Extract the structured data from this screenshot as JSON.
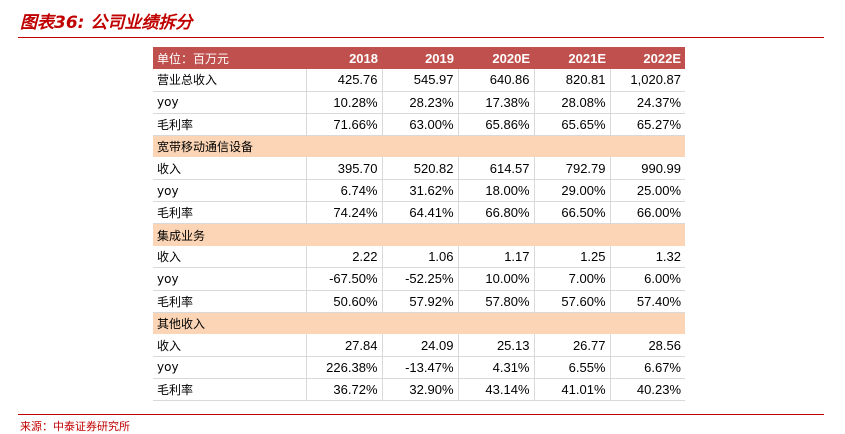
{
  "title": "图表36: 公司业绩拆分",
  "source": "来源：中泰证券研究所",
  "columns": [
    "单位：百万元",
    "2018",
    "2019",
    "2020E",
    "2021E",
    "2022E"
  ],
  "rows": [
    {
      "type": "data",
      "label": "营业总收入",
      "values": [
        "425.76",
        "545.97",
        "640.86",
        "820.81",
        "1,020.87"
      ]
    },
    {
      "type": "data",
      "label": "yoy",
      "values": [
        "10.28%",
        "28.23%",
        "17.38%",
        "28.08%",
        "24.37%"
      ]
    },
    {
      "type": "data",
      "label": "毛利率",
      "values": [
        "71.66%",
        "63.00%",
        "65.86%",
        "65.65%",
        "65.27%"
      ]
    },
    {
      "type": "section",
      "label": "宽带移动通信设备"
    },
    {
      "type": "data",
      "label": "收入",
      "values": [
        "395.70",
        "520.82",
        "614.57",
        "792.79",
        "990.99"
      ]
    },
    {
      "type": "data",
      "label": "yoy",
      "values": [
        "6.74%",
        "31.62%",
        "18.00%",
        "29.00%",
        "25.00%"
      ]
    },
    {
      "type": "data",
      "label": "毛利率",
      "values": [
        "74.24%",
        "64.41%",
        "66.80%",
        "66.50%",
        "66.00%"
      ]
    },
    {
      "type": "section",
      "label": "集成业务"
    },
    {
      "type": "data",
      "label": "收入",
      "values": [
        "2.22",
        "1.06",
        "1.17",
        "1.25",
        "1.32"
      ]
    },
    {
      "type": "data",
      "label": "yoy",
      "values": [
        "-67.50%",
        "-52.25%",
        "10.00%",
        "7.00%",
        "6.00%"
      ]
    },
    {
      "type": "data",
      "label": "毛利率",
      "values": [
        "50.60%",
        "57.92%",
        "57.80%",
        "57.60%",
        "57.40%"
      ]
    },
    {
      "type": "section",
      "label": "其他收入"
    },
    {
      "type": "data",
      "label": "收入",
      "values": [
        "27.84",
        "24.09",
        "25.13",
        "26.77",
        "28.56"
      ]
    },
    {
      "type": "data",
      "label": "yoy",
      "values": [
        "226.38%",
        "-13.47%",
        "4.31%",
        "6.55%",
        "6.67%"
      ]
    },
    {
      "type": "data",
      "label": "毛利率",
      "values": [
        "36.72%",
        "32.90%",
        "43.14%",
        "41.01%",
        "40.23%"
      ]
    }
  ],
  "colors": {
    "title": "#c00000",
    "header_bg": "#c0504d",
    "section_bg": "#fbd5b5",
    "rule": "#c00000"
  }
}
